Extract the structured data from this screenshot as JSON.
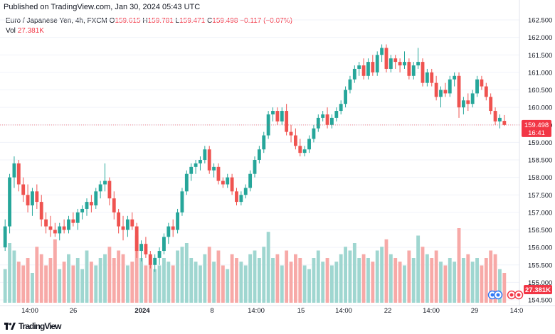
{
  "header": {
    "published": "Published on TradingView.com, Jan 30, 2024 05:43 UTC"
  },
  "legend": {
    "symbol": "Euro / Japanese Yen, 4h, FXCM",
    "o_label": "O",
    "o": "159.615",
    "h_label": "H",
    "h": "159.781",
    "l_label": "L",
    "l": "159.471",
    "c_label": "C",
    "c": "159.498",
    "change": "−0.117 (−0.07%)",
    "vol_label": "Vol",
    "vol": "27.381K"
  },
  "footer": {
    "logo_text": "TradingView"
  },
  "colors": {
    "up": "#26a69a",
    "down": "#ef5350",
    "vol_up": "#9fd6d0",
    "vol_down": "#f7a9a7",
    "price_line": "#f23645",
    "vol_badge": "#f23645"
  },
  "chart_data": {
    "type": "candlestick",
    "price_axis": {
      "ylim": [
        154.5,
        162.5
      ],
      "ticks": [
        "162.500",
        "162.000",
        "161.500",
        "161.000",
        "160.500",
        "160.000",
        "159.500",
        "159.000",
        "158.500",
        "158.000",
        "157.500",
        "157.000",
        "156.500",
        "156.000",
        "155.500",
        "155.000",
        "154.500"
      ]
    },
    "current_price": "159.498",
    "countdown": "16:41",
    "current_volume": "27.381K",
    "x_ticks": [
      "14:00",
      "26",
      "2024",
      "8",
      "14:00",
      "15",
      "14:00",
      "22",
      "14:00",
      "29",
      "14:0"
    ],
    "candles": [
      [
        156.0,
        156.8,
        155.9,
        156.6,
        9
      ],
      [
        156.6,
        158.1,
        156.4,
        158.0,
        16
      ],
      [
        158.0,
        158.6,
        157.7,
        158.4,
        14
      ],
      [
        158.4,
        158.5,
        157.6,
        157.8,
        11
      ],
      [
        157.8,
        158.0,
        157.3,
        157.5,
        10
      ],
      [
        157.5,
        157.8,
        157.0,
        157.2,
        12
      ],
      [
        157.2,
        157.7,
        156.9,
        157.6,
        8
      ],
      [
        157.6,
        157.8,
        157.1,
        157.3,
        15
      ],
      [
        157.3,
        157.5,
        156.6,
        156.8,
        13
      ],
      [
        156.8,
        157.0,
        156.4,
        156.6,
        10
      ],
      [
        156.6,
        156.9,
        156.3,
        156.5,
        12
      ],
      [
        156.5,
        156.7,
        156.3,
        156.4,
        17
      ],
      [
        156.4,
        156.7,
        156.2,
        156.6,
        9
      ],
      [
        156.6,
        156.8,
        156.4,
        156.5,
        11
      ],
      [
        156.5,
        156.9,
        156.4,
        156.8,
        13
      ],
      [
        156.8,
        157.0,
        156.6,
        156.7,
        10
      ],
      [
        156.7,
        157.1,
        156.5,
        157.0,
        12
      ],
      [
        157.0,
        157.2,
        156.8,
        157.1,
        9
      ],
      [
        157.1,
        157.4,
        156.9,
        157.3,
        14
      ],
      [
        157.3,
        157.5,
        157.0,
        157.2,
        11
      ],
      [
        157.2,
        157.7,
        157.1,
        157.6,
        10
      ],
      [
        157.6,
        157.9,
        157.4,
        157.8,
        12
      ],
      [
        157.8,
        158.4,
        157.6,
        157.9,
        13
      ],
      [
        157.9,
        158.0,
        157.2,
        157.4,
        15
      ],
      [
        157.4,
        157.6,
        156.8,
        157.0,
        12
      ],
      [
        157.0,
        157.1,
        156.4,
        156.6,
        14
      ],
      [
        156.6,
        156.9,
        156.2,
        156.5,
        13
      ],
      [
        156.5,
        156.9,
        156.3,
        156.8,
        10
      ],
      [
        156.8,
        157.0,
        156.5,
        156.6,
        11
      ],
      [
        156.6,
        156.7,
        155.7,
        155.9,
        18
      ],
      [
        155.9,
        156.2,
        155.6,
        156.1,
        12
      ],
      [
        156.1,
        156.3,
        155.7,
        155.8,
        10
      ],
      [
        155.8,
        155.9,
        155.4,
        155.5,
        13
      ],
      [
        155.5,
        155.8,
        155.3,
        155.7,
        9
      ],
      [
        155.7,
        156.0,
        155.5,
        155.9,
        10
      ],
      [
        155.9,
        156.4,
        155.8,
        156.3,
        12
      ],
      [
        156.3,
        156.7,
        156.1,
        156.6,
        11
      ],
      [
        156.6,
        156.8,
        156.3,
        156.5,
        10
      ],
      [
        156.5,
        157.1,
        156.4,
        157.0,
        14
      ],
      [
        157.0,
        157.7,
        156.9,
        157.6,
        15
      ],
      [
        157.6,
        158.2,
        157.5,
        158.1,
        16
      ],
      [
        158.1,
        158.4,
        157.9,
        158.3,
        12
      ],
      [
        158.3,
        158.5,
        158.1,
        158.4,
        11
      ],
      [
        158.4,
        158.6,
        158.2,
        158.5,
        10
      ],
      [
        158.5,
        158.9,
        158.4,
        158.8,
        13
      ],
      [
        158.8,
        158.9,
        158.1,
        158.2,
        15
      ],
      [
        158.2,
        158.4,
        158.0,
        158.3,
        11
      ],
      [
        158.3,
        158.4,
        157.8,
        157.9,
        14
      ],
      [
        157.9,
        158.0,
        157.7,
        157.8,
        10
      ],
      [
        157.8,
        158.1,
        157.7,
        158.0,
        9
      ],
      [
        158.0,
        158.1,
        157.5,
        157.6,
        13
      ],
      [
        157.6,
        157.7,
        157.2,
        157.3,
        12
      ],
      [
        157.3,
        157.6,
        157.2,
        157.5,
        11
      ],
      [
        157.5,
        157.8,
        157.4,
        157.7,
        10
      ],
      [
        157.7,
        158.2,
        157.6,
        158.1,
        13
      ],
      [
        158.1,
        158.6,
        158.0,
        158.5,
        14
      ],
      [
        158.5,
        158.9,
        158.4,
        158.8,
        12
      ],
      [
        158.8,
        159.3,
        158.7,
        159.2,
        15
      ],
      [
        159.2,
        159.9,
        159.1,
        159.8,
        19
      ],
      [
        159.8,
        160.0,
        159.6,
        159.9,
        12
      ],
      [
        159.9,
        160.0,
        159.5,
        159.6,
        13
      ],
      [
        159.6,
        160.0,
        159.5,
        159.9,
        10
      ],
      [
        159.9,
        160.1,
        159.2,
        159.3,
        14
      ],
      [
        159.3,
        159.5,
        159.0,
        159.2,
        11
      ],
      [
        159.2,
        159.4,
        158.8,
        158.9,
        13
      ],
      [
        158.9,
        159.1,
        158.6,
        158.7,
        12
      ],
      [
        158.7,
        158.9,
        158.6,
        158.8,
        10
      ],
      [
        158.8,
        159.2,
        158.7,
        159.1,
        9
      ],
      [
        159.1,
        159.5,
        159.0,
        159.4,
        12
      ],
      [
        159.4,
        159.8,
        159.3,
        159.7,
        14
      ],
      [
        159.7,
        159.9,
        159.6,
        159.8,
        11
      ],
      [
        159.8,
        160.0,
        159.4,
        159.5,
        12
      ],
      [
        159.5,
        159.8,
        159.4,
        159.7,
        10
      ],
      [
        159.7,
        160.0,
        159.6,
        159.9,
        11
      ],
      [
        159.9,
        160.2,
        159.8,
        160.1,
        13
      ],
      [
        160.1,
        160.6,
        160.0,
        160.5,
        15
      ],
      [
        160.5,
        160.9,
        160.4,
        160.8,
        14
      ],
      [
        160.8,
        161.2,
        160.7,
        161.1,
        16
      ],
      [
        161.1,
        161.3,
        160.9,
        161.2,
        12
      ],
      [
        161.2,
        161.4,
        160.8,
        160.9,
        13
      ],
      [
        160.9,
        161.4,
        160.8,
        161.3,
        12
      ],
      [
        161.3,
        161.5,
        160.9,
        161.0,
        11
      ],
      [
        161.0,
        161.6,
        160.9,
        161.5,
        14
      ],
      [
        161.5,
        161.8,
        161.3,
        161.7,
        15
      ],
      [
        161.7,
        161.8,
        161.0,
        161.1,
        17
      ],
      [
        161.1,
        161.5,
        161.0,
        161.4,
        13
      ],
      [
        161.4,
        161.5,
        161.1,
        161.3,
        12
      ],
      [
        161.3,
        161.4,
        161.0,
        161.2,
        11
      ],
      [
        161.2,
        161.6,
        161.1,
        161.3,
        10
      ],
      [
        161.3,
        161.4,
        160.8,
        160.9,
        14
      ],
      [
        160.9,
        161.3,
        160.8,
        161.2,
        12
      ],
      [
        161.2,
        161.7,
        161.1,
        161.3,
        18
      ],
      [
        161.3,
        161.4,
        160.6,
        160.7,
        15
      ],
      [
        160.7,
        161.1,
        160.6,
        161.0,
        13
      ],
      [
        161.0,
        161.1,
        160.6,
        160.7,
        12
      ],
      [
        160.7,
        160.9,
        160.2,
        160.3,
        14
      ],
      [
        160.3,
        160.6,
        160.0,
        160.5,
        11
      ],
      [
        160.5,
        160.7,
        160.3,
        160.4,
        10
      ],
      [
        160.4,
        160.9,
        160.3,
        160.8,
        12
      ],
      [
        160.8,
        161.0,
        160.6,
        160.9,
        11
      ],
      [
        160.9,
        161.0,
        159.7,
        160.0,
        20
      ],
      [
        160.0,
        160.3,
        159.8,
        160.2,
        12
      ],
      [
        160.2,
        160.4,
        159.9,
        160.1,
        13
      ],
      [
        160.1,
        160.5,
        160.0,
        160.4,
        11
      ],
      [
        160.4,
        160.9,
        160.3,
        160.8,
        12
      ],
      [
        160.8,
        160.9,
        160.5,
        160.6,
        10
      ],
      [
        160.6,
        160.7,
        160.2,
        160.3,
        12
      ],
      [
        160.3,
        160.4,
        159.8,
        159.9,
        14
      ],
      [
        159.9,
        160.0,
        159.5,
        159.6,
        13
      ],
      [
        159.6,
        159.8,
        159.4,
        159.7,
        9
      ],
      [
        159.615,
        159.781,
        159.471,
        159.498,
        8
      ]
    ]
  }
}
